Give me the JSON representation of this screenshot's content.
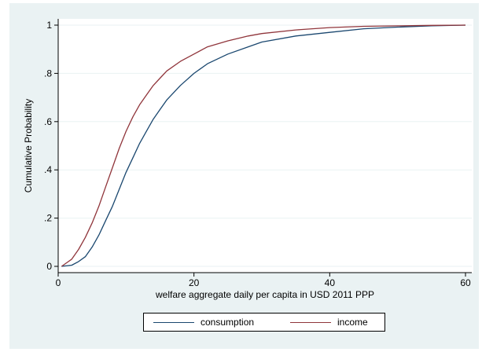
{
  "chart_data": {
    "type": "line",
    "xlabel": "welfare aggregate daily per capita in USD 2011 PPP",
    "ylabel": "Cumulative Probability",
    "xlim": [
      0,
      60
    ],
    "ylim": [
      0,
      1
    ],
    "x_ticks": [
      "0",
      "20",
      "40",
      "60"
    ],
    "y_ticks": [
      "0",
      ".2",
      ".4",
      ".6",
      ".8",
      "1"
    ],
    "x_tick_values": [
      0,
      20,
      40,
      60
    ],
    "y_tick_values": [
      0,
      0.2,
      0.4,
      0.6,
      0.8,
      1
    ],
    "grid": "horizontal",
    "legend_position": "bottom",
    "series": [
      {
        "name": "consumption",
        "color": "#1a476f",
        "x": [
          0.5,
          2,
          3,
          4,
          5,
          6,
          7,
          8,
          9,
          10,
          11,
          12,
          13,
          14,
          15,
          16,
          18,
          20,
          22,
          25,
          28,
          30,
          35,
          40,
          45,
          50,
          55,
          60
        ],
        "y": [
          0.0,
          0.005,
          0.02,
          0.04,
          0.08,
          0.13,
          0.19,
          0.25,
          0.32,
          0.39,
          0.45,
          0.51,
          0.56,
          0.61,
          0.65,
          0.69,
          0.75,
          0.8,
          0.84,
          0.88,
          0.91,
          0.93,
          0.955,
          0.97,
          0.985,
          0.992,
          0.997,
          1.0
        ]
      },
      {
        "name": "income",
        "color": "#90353b",
        "x": [
          0.5,
          1.5,
          2,
          3,
          4,
          5,
          6,
          7,
          8,
          9,
          10,
          11,
          12,
          13,
          14,
          15,
          16,
          18,
          20,
          22,
          25,
          28,
          30,
          35,
          40,
          45,
          50,
          55,
          60
        ],
        "y": [
          0.0,
          0.02,
          0.03,
          0.07,
          0.12,
          0.18,
          0.25,
          0.33,
          0.41,
          0.49,
          0.56,
          0.62,
          0.67,
          0.71,
          0.75,
          0.78,
          0.81,
          0.85,
          0.88,
          0.91,
          0.935,
          0.955,
          0.965,
          0.98,
          0.99,
          0.995,
          0.997,
          0.999,
          1.0
        ]
      }
    ]
  }
}
